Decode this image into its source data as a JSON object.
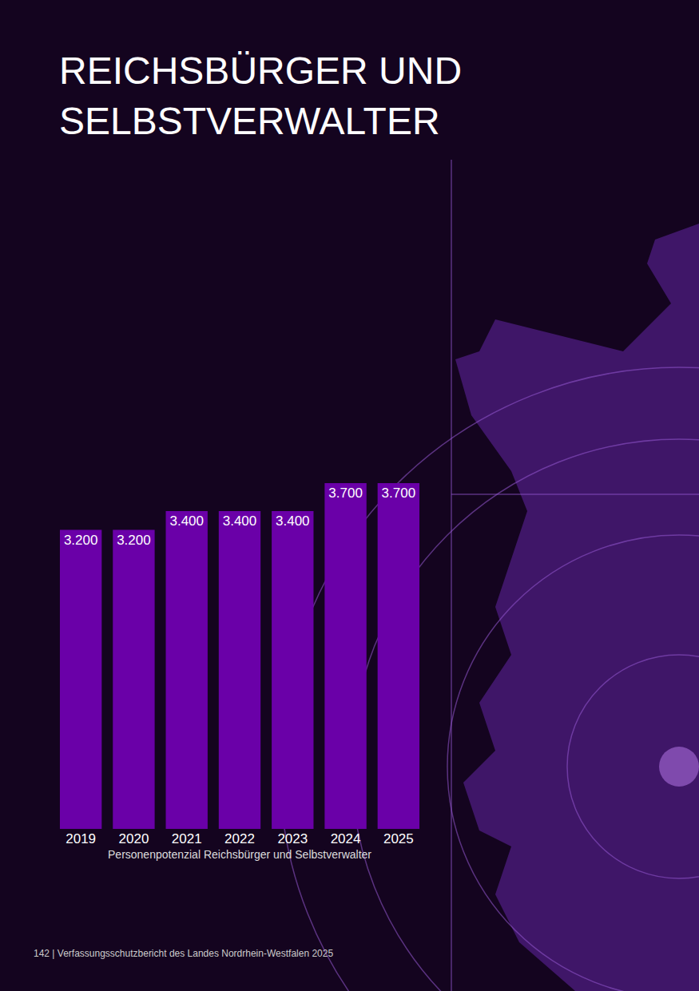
{
  "chart_data": {
    "type": "bar",
    "title": "REICHSBÜRGER UND\nSELBSTVERWALTER",
    "x_label": "Personenpotenzial Reichsbürger und Selbstverwalter",
    "categories": [
      "2019",
      "2020",
      "2021",
      "2022",
      "2023",
      "2024",
      "2025"
    ],
    "values": [
      3200,
      3200,
      3400,
      3400,
      3400,
      3700,
      3700
    ],
    "value_labels": [
      "3.200",
      "3.200",
      "3.400",
      "3.400",
      "3.400",
      "3.700",
      "3.700"
    ],
    "color": "#6a00a8",
    "ylim": [
      0,
      3700
    ],
    "grid": false,
    "data_labels": true,
    "tick_labels": "x",
    "annotations": [
      "142 | Verfassungsschutzbericht des Landes Nordrhein-Westfalen 2025"
    ]
  }
}
